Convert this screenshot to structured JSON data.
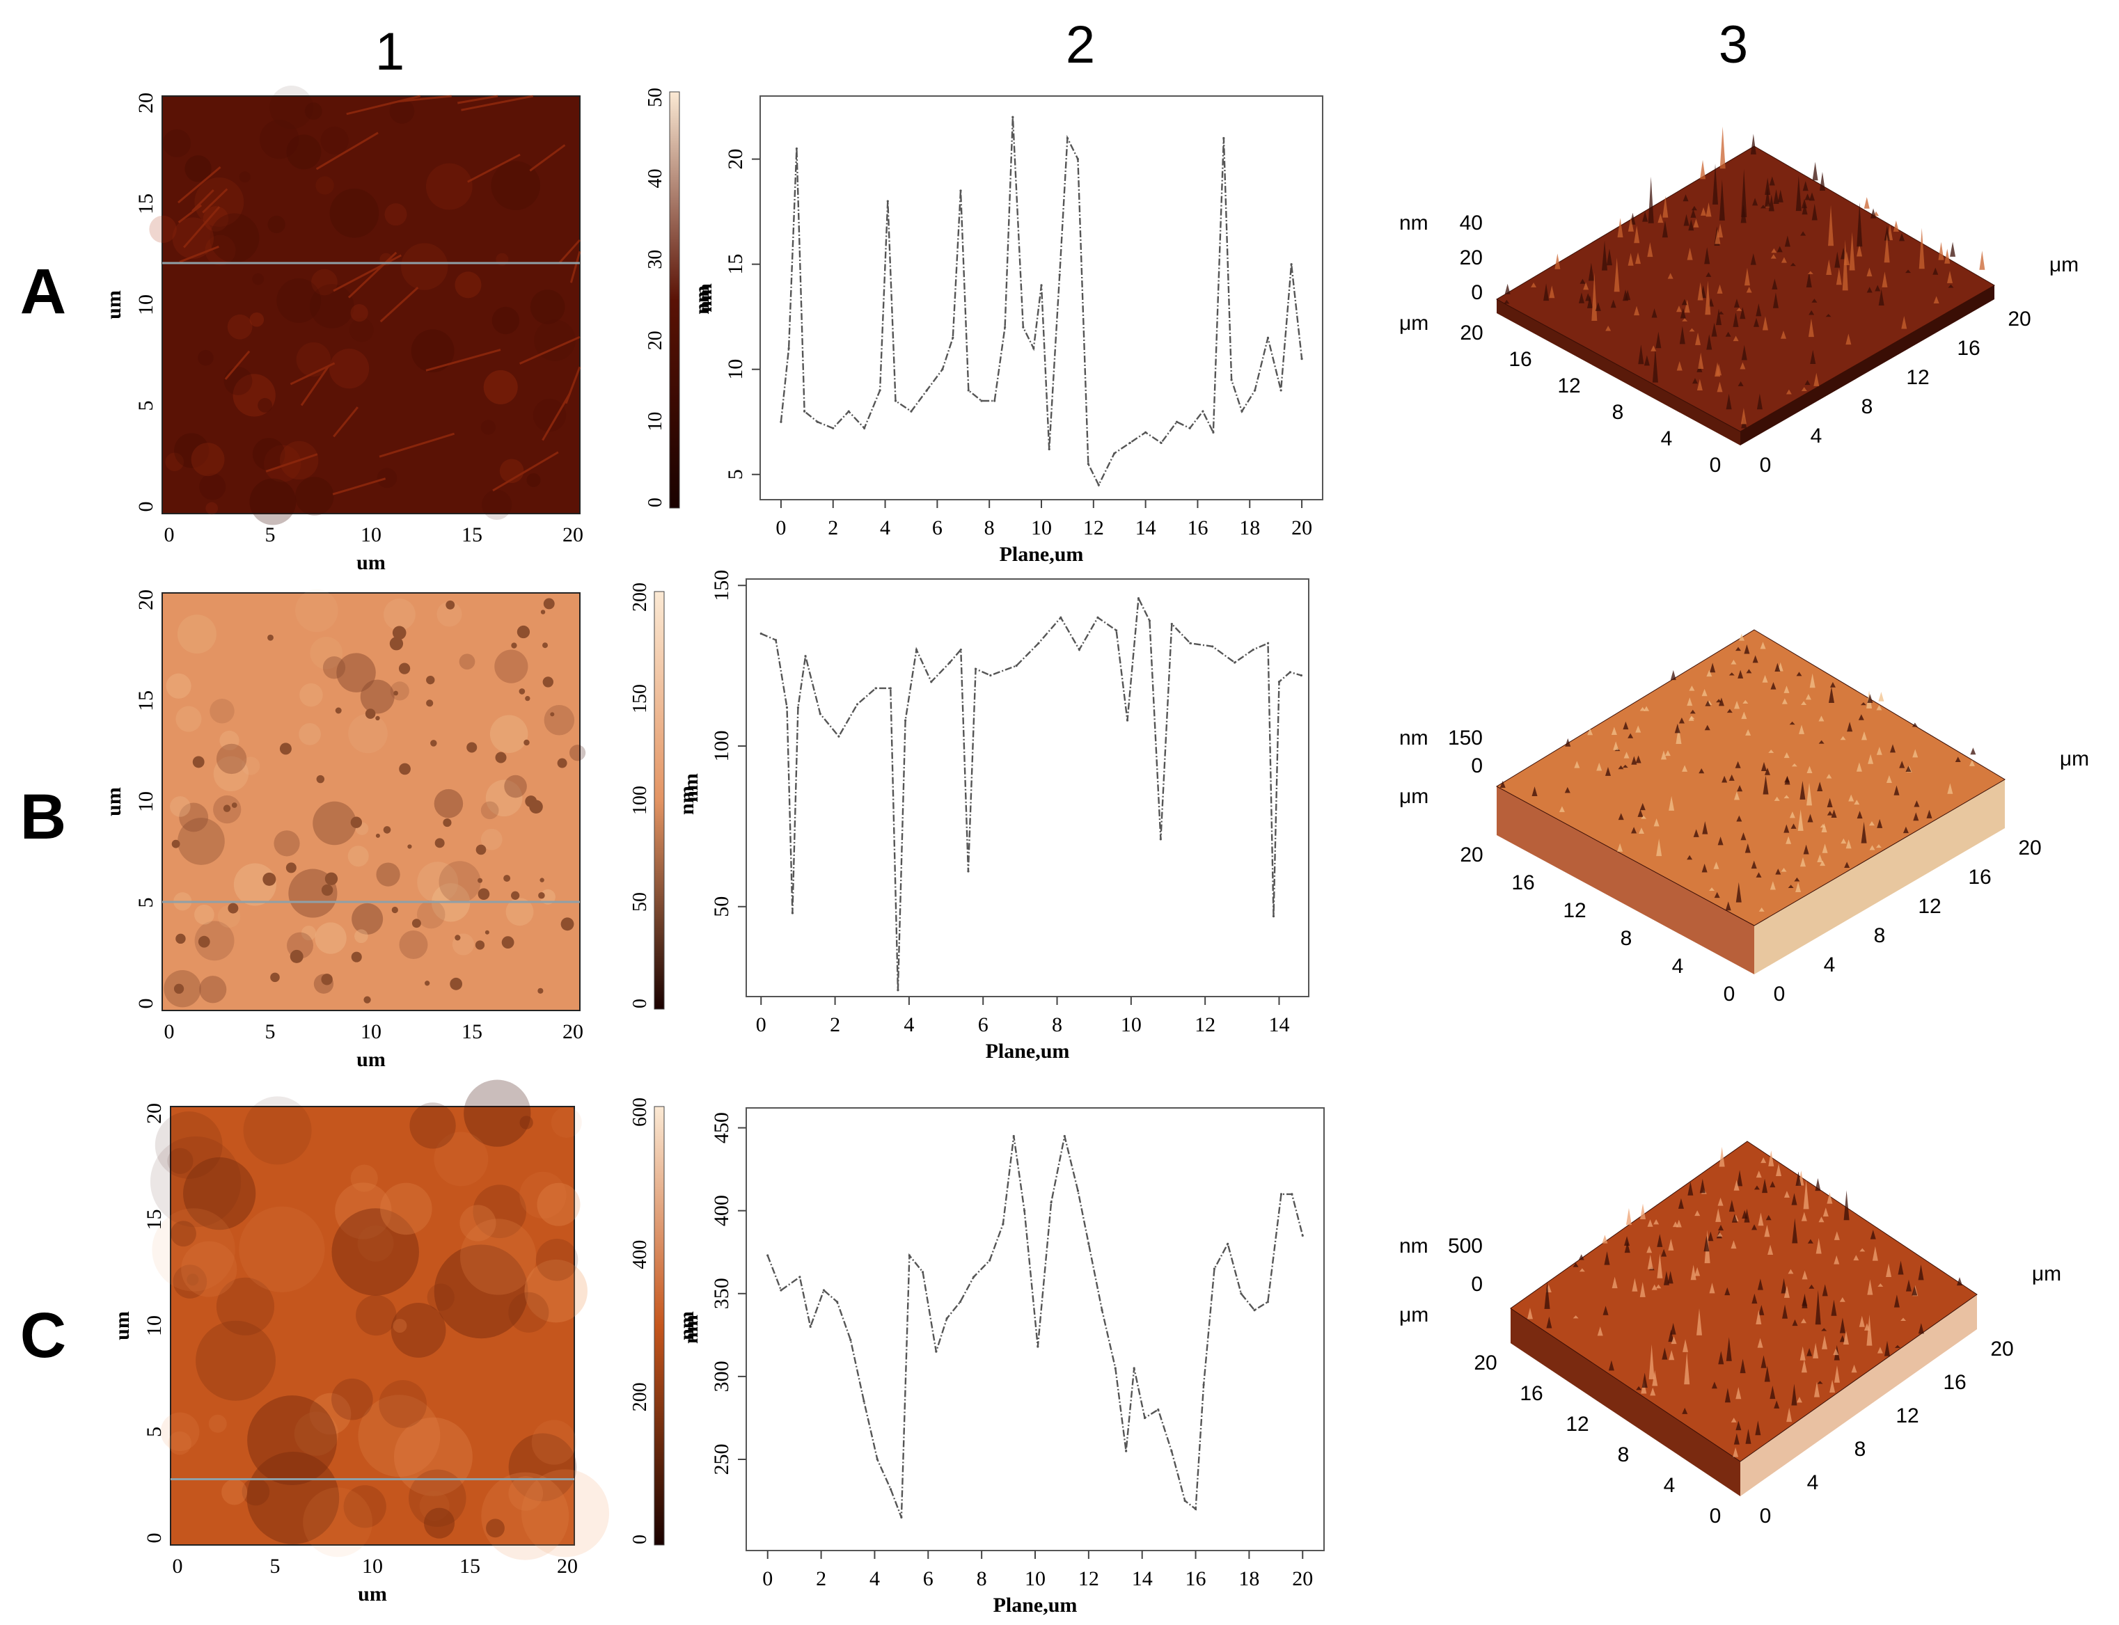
{
  "columns": [
    "1",
    "2",
    "3"
  ],
  "rows": [
    "A",
    "B",
    "C"
  ],
  "afm_maps": [
    {
      "row": "A",
      "x_ticks": [
        "0",
        "5",
        "10",
        "15",
        "20"
      ],
      "y_ticks": [
        "0",
        "5",
        "10",
        "15",
        "20"
      ],
      "xlabel": "um",
      "ylabel": "um",
      "colorbar": {
        "ticks": [
          "0",
          "10",
          "20",
          "30",
          "40",
          "50"
        ],
        "label": "nm"
      },
      "palette": {
        "base": "#5a1205",
        "hi": "#b03512"
      }
    },
    {
      "row": "B",
      "x_ticks": [
        "0",
        "5",
        "10",
        "15",
        "20"
      ],
      "y_ticks": [
        "0",
        "5",
        "10",
        "15",
        "20"
      ],
      "xlabel": "um",
      "ylabel": "um",
      "colorbar": {
        "ticks": [
          "0",
          "50",
          "100",
          "150",
          "200"
        ],
        "label": "nm"
      },
      "palette": {
        "base": "#e39463",
        "hi": "#f6d6a8"
      }
    },
    {
      "row": "C",
      "x_ticks": [
        "0",
        "5",
        "10",
        "15",
        "20"
      ],
      "y_ticks": [
        "0",
        "5",
        "10",
        "15",
        "20"
      ],
      "xlabel": "um",
      "ylabel": "um",
      "colorbar": {
        "ticks": [
          "0",
          "200",
          "400",
          "600"
        ],
        "label": "nm"
      },
      "palette": {
        "base": "#c5561d",
        "hi": "#ef9a5e"
      }
    }
  ],
  "chart_data": [
    {
      "type": "line",
      "row": "A",
      "xlabel": "Plane,um",
      "ylabel": "nm",
      "xlim": [
        -0.8,
        20.8
      ],
      "ylim": [
        3.8,
        23
      ],
      "x_ticks": [
        0,
        2,
        4,
        6,
        8,
        10,
        12,
        14,
        16,
        18,
        20
      ],
      "y_ticks": [
        5,
        10,
        15,
        20
      ],
      "x": [
        0,
        0.3,
        0.6,
        0.9,
        1.4,
        2,
        2.6,
        3.2,
        3.8,
        4.1,
        4.4,
        5,
        5.6,
        6.2,
        6.6,
        6.9,
        7.2,
        7.7,
        8.2,
        8.6,
        8.9,
        9.3,
        9.7,
        10.0,
        10.3,
        10.7,
        11.0,
        11.4,
        11.8,
        12.2,
        12.8,
        13.4,
        14,
        14.6,
        15.2,
        15.7,
        16.2,
        16.6,
        17.0,
        17.3,
        17.7,
        18.2,
        18.7,
        19.2,
        19.6,
        20
      ],
      "y": [
        7.5,
        11,
        20.5,
        8,
        7.5,
        7.2,
        8,
        7.2,
        9,
        18,
        8.5,
        8,
        9,
        10,
        11.5,
        18.5,
        9,
        8.5,
        8.5,
        12,
        22,
        12,
        11,
        14,
        6.2,
        14.5,
        21,
        20,
        5.5,
        4.5,
        6,
        6.5,
        7,
        6.5,
        7.5,
        7.2,
        8,
        7,
        21,
        9.5,
        8,
        9,
        11.5,
        9,
        15,
        10.5
      ]
    },
    {
      "type": "line",
      "row": "B",
      "xlabel": "Plane,um",
      "ylabel": "nm",
      "xlim": [
        -0.4,
        14.8
      ],
      "ylim": [
        22,
        152
      ],
      "x_ticks": [
        0,
        2,
        4,
        6,
        8,
        10,
        12,
        14
      ],
      "y_ticks": [
        50,
        100,
        150
      ],
      "x": [
        0,
        0.4,
        0.7,
        0.85,
        1.0,
        1.2,
        1.6,
        2.1,
        2.6,
        3.1,
        3.5,
        3.7,
        3.9,
        4.2,
        4.6,
        5.1,
        5.4,
        5.6,
        5.8,
        6.2,
        6.9,
        7.5,
        8.1,
        8.6,
        9.1,
        9.6,
        9.9,
        10.2,
        10.5,
        10.8,
        11.1,
        11.6,
        12.2,
        12.8,
        13.3,
        13.7,
        13.85,
        14.0,
        14.3,
        14.6
      ],
      "y": [
        135,
        133,
        112,
        48,
        112,
        128,
        110,
        103,
        113,
        118,
        118,
        24,
        108,
        130,
        120,
        126,
        130,
        61,
        124,
        122,
        125,
        132,
        140,
        130,
        140,
        136,
        108,
        146,
        139,
        71,
        138,
        132,
        131,
        126,
        130,
        132,
        47,
        120,
        123,
        122
      ]
    },
    {
      "type": "line",
      "row": "C",
      "xlabel": "Plane,um",
      "ylabel": "nm",
      "xlim": [
        -0.8,
        20.8
      ],
      "ylim": [
        195,
        462
      ],
      "x_ticks": [
        0,
        2,
        4,
        6,
        8,
        10,
        12,
        14,
        16,
        18,
        20
      ],
      "y_ticks": [
        250,
        300,
        350,
        400,
        450
      ],
      "x": [
        0,
        0.5,
        1.2,
        1.6,
        2.1,
        2.6,
        3.1,
        3.6,
        4.1,
        4.6,
        5.0,
        5.3,
        5.8,
        6.3,
        6.7,
        7.2,
        7.7,
        8.3,
        8.8,
        9.2,
        9.6,
        10.1,
        10.6,
        11.1,
        11.6,
        12.0,
        12.5,
        13.0,
        13.4,
        13.7,
        14.1,
        14.6,
        15.1,
        15.6,
        16.0,
        16.3,
        16.7,
        17.2,
        17.7,
        18.2,
        18.7,
        19.2,
        19.6,
        20
      ],
      "y": [
        373,
        352,
        360,
        330,
        352,
        345,
        322,
        285,
        250,
        232,
        215,
        373,
        363,
        315,
        335,
        345,
        360,
        370,
        392,
        445,
        400,
        318,
        405,
        445,
        412,
        380,
        340,
        305,
        255,
        305,
        275,
        280,
        255,
        225,
        220,
        295,
        365,
        380,
        350,
        340,
        345,
        410,
        410,
        385
      ]
    }
  ],
  "surface_3d": [
    {
      "row": "A",
      "z_label": "nm",
      "z_ticks": [
        "40",
        "20",
        "0"
      ],
      "um_label": "μm",
      "left_ticks": [
        "20",
        "16",
        "12",
        "8",
        "4",
        "0"
      ],
      "right_ticks": [
        "0",
        "4",
        "8",
        "12",
        "16",
        "20"
      ],
      "right_label": "μm",
      "colors": {
        "top": "#7a2410",
        "hi": "#c9622e",
        "left": "#5a1a0a",
        "right": "#3a0e05"
      }
    },
    {
      "row": "B",
      "z_label": "nm",
      "z_ticks": [
        "150",
        "0"
      ],
      "um_label": "μm",
      "left_ticks": [
        "20",
        "16",
        "12",
        "8",
        "4",
        "0"
      ],
      "right_ticks": [
        "0",
        "4",
        "8",
        "12",
        "16",
        "20"
      ],
      "right_label": "μm",
      "colors": {
        "top": "#d67a3e",
        "hi": "#f2c08a",
        "left": "#b8603a",
        "right": "#e8c79f"
      }
    },
    {
      "row": "C",
      "z_label": "nm",
      "z_ticks": [
        "500",
        "0"
      ],
      "um_label": "μm",
      "left_ticks": [
        "20",
        "16",
        "12",
        "8",
        "4",
        "0"
      ],
      "right_ticks": [
        "0",
        "4",
        "8",
        "12",
        "16",
        "20"
      ],
      "right_label": "μm",
      "colors": {
        "top": "#b4471a",
        "hi": "#eea070",
        "left": "#7a2a10",
        "right": "#e9c1a2"
      }
    }
  ]
}
